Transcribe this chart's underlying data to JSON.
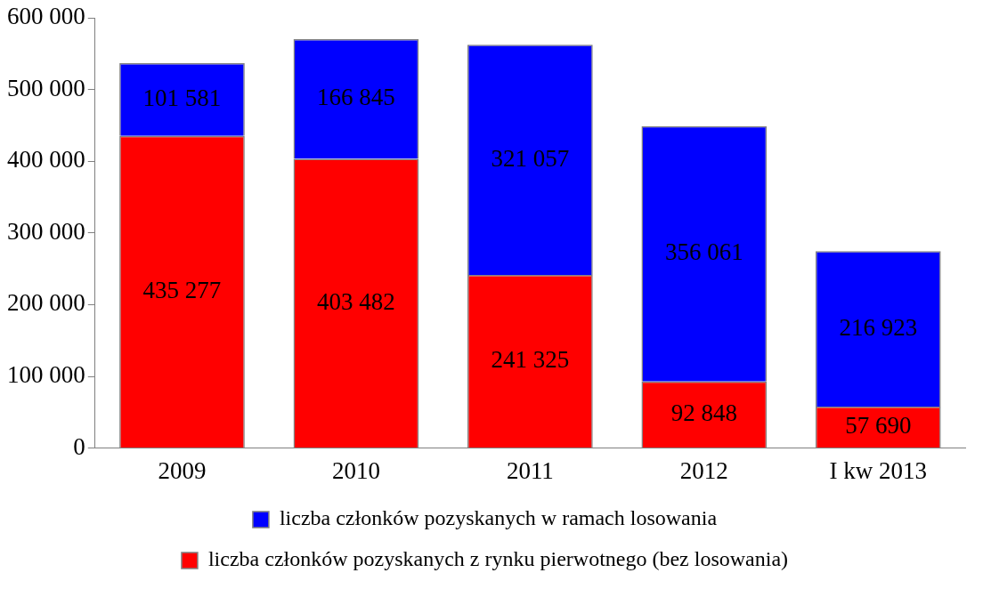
{
  "chart_data": {
    "type": "bar",
    "stacked": true,
    "categories": [
      "2009",
      "2010",
      "2011",
      "2012",
      "I kw 2013"
    ],
    "series": [
      {
        "name": "liczba członków pozyskanych z rynku pierwotnego (bez losowania)",
        "color": "#ff0000",
        "values": [
          435277,
          403482,
          241325,
          92848,
          57690
        ],
        "value_labels": [
          "435 277",
          "403 482",
          "241 325",
          "92 848",
          "57 690"
        ]
      },
      {
        "name": "liczba członków pozyskanych w ramach losowania",
        "color": "#0000ff",
        "values": [
          101581,
          166845,
          321057,
          356061,
          216923
        ],
        "value_labels": [
          "101 581",
          "166 845",
          "321 057",
          "356 061",
          "216 923"
        ]
      }
    ],
    "ylim": [
      0,
      600000
    ],
    "yticks": [
      0,
      {
        "value": 100000,
        "label": "100 000"
      },
      {
        "value": 200000,
        "label": "200 000"
      },
      {
        "value": 300000,
        "label": "300 000"
      },
      {
        "value": 400000,
        "label": "400 000"
      },
      {
        "value": 500000,
        "label": "500 000"
      },
      {
        "value": 600000,
        "label": "600 000"
      }
    ],
    "grid": false,
    "legend": "bottom"
  }
}
